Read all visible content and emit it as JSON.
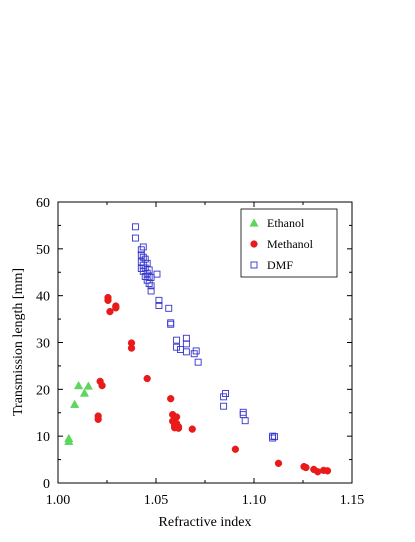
{
  "chart_data": {
    "type": "scatter",
    "xlabel": "Refractive index",
    "ylabel": "Transmission length [mm]",
    "xlim": [
      1.0,
      1.15
    ],
    "ylim": [
      0,
      60
    ],
    "xticks": [
      "1.00",
      "1.05",
      "1.10",
      "1.15"
    ],
    "yticks": [
      "0",
      "10",
      "20",
      "30",
      "40",
      "50",
      "60"
    ],
    "xtick_values": [
      1.0,
      1.05,
      1.1,
      1.15
    ],
    "ytick_values": [
      0,
      10,
      20,
      30,
      40,
      50,
      60
    ],
    "grid": false,
    "legend_position": "top-right",
    "series": [
      {
        "name": "Ethanol",
        "marker": "triangle",
        "color": "#5cd65c",
        "filled": true,
        "points": [
          [
            1.0055,
            9.5
          ],
          [
            1.0055,
            8.9
          ],
          [
            1.0085,
            16.8
          ],
          [
            1.0105,
            20.8
          ],
          [
            1.0135,
            19.2
          ],
          [
            1.0155,
            20.7
          ]
        ]
      },
      {
        "name": "Methanol",
        "marker": "circle",
        "color": "#e81a1a",
        "filled": true,
        "points": [
          [
            1.0205,
            14.3
          ],
          [
            1.0205,
            13.6
          ],
          [
            1.0215,
            21.7
          ],
          [
            1.0225,
            20.8
          ],
          [
            1.0255,
            39.6
          ],
          [
            1.0255,
            39.0
          ],
          [
            1.0265,
            36.6
          ],
          [
            1.0295,
            37.8
          ],
          [
            1.0295,
            37.4
          ],
          [
            1.0375,
            29.9
          ],
          [
            1.0375,
            28.8
          ],
          [
            1.0455,
            22.3
          ],
          [
            1.0575,
            18.0
          ],
          [
            1.0585,
            14.6
          ],
          [
            1.0585,
            13.2
          ],
          [
            1.0595,
            12.3
          ],
          [
            1.0595,
            11.8
          ],
          [
            1.0605,
            14.1
          ],
          [
            1.0605,
            12.7
          ],
          [
            1.0615,
            12.0
          ],
          [
            1.0615,
            11.7
          ],
          [
            1.0685,
            11.5
          ],
          [
            1.0905,
            7.2
          ],
          [
            1.1125,
            4.2
          ],
          [
            1.1255,
            3.5
          ],
          [
            1.1265,
            3.3
          ],
          [
            1.1305,
            2.9
          ],
          [
            1.1325,
            2.4
          ],
          [
            1.1355,
            2.7
          ],
          [
            1.1375,
            2.6
          ]
        ]
      },
      {
        "name": "DMF",
        "marker": "square",
        "color": "#3333cc",
        "filled": false,
        "points": [
          [
            1.0395,
            54.7
          ],
          [
            1.0395,
            52.3
          ],
          [
            1.0425,
            49.8
          ],
          [
            1.0425,
            48.7
          ],
          [
            1.0425,
            47.2
          ],
          [
            1.0425,
            45.8
          ],
          [
            1.0435,
            50.4
          ],
          [
            1.0435,
            48.2
          ],
          [
            1.0435,
            46.5
          ],
          [
            1.0435,
            45.2
          ],
          [
            1.0445,
            47.8
          ],
          [
            1.0445,
            45.9
          ],
          [
            1.0445,
            44.1
          ],
          [
            1.0455,
            46.9
          ],
          [
            1.0455,
            44.8
          ],
          [
            1.0455,
            43.3
          ],
          [
            1.0465,
            45.5
          ],
          [
            1.0465,
            44.0
          ],
          [
            1.0465,
            42.6
          ],
          [
            1.0475,
            43.9
          ],
          [
            1.0475,
            42.1
          ],
          [
            1.0475,
            41.0
          ],
          [
            1.0505,
            44.6
          ],
          [
            1.0515,
            39.0
          ],
          [
            1.0515,
            37.9
          ],
          [
            1.0565,
            37.3
          ],
          [
            1.0575,
            34.2
          ],
          [
            1.0575,
            33.9
          ],
          [
            1.0605,
            30.5
          ],
          [
            1.0605,
            29.0
          ],
          [
            1.0625,
            28.5
          ],
          [
            1.0655,
            30.9
          ],
          [
            1.0655,
            29.7
          ],
          [
            1.0655,
            28.0
          ],
          [
            1.0695,
            27.6
          ],
          [
            1.0705,
            28.2
          ],
          [
            1.0715,
            25.8
          ],
          [
            1.0845,
            18.4
          ],
          [
            1.0845,
            16.4
          ],
          [
            1.0855,
            19.1
          ],
          [
            1.0945,
            15.1
          ],
          [
            1.0945,
            14.6
          ],
          [
            1.0955,
            13.3
          ],
          [
            1.1095,
            10.0
          ],
          [
            1.1095,
            9.6
          ],
          [
            1.1105,
            9.9
          ]
        ]
      }
    ]
  }
}
